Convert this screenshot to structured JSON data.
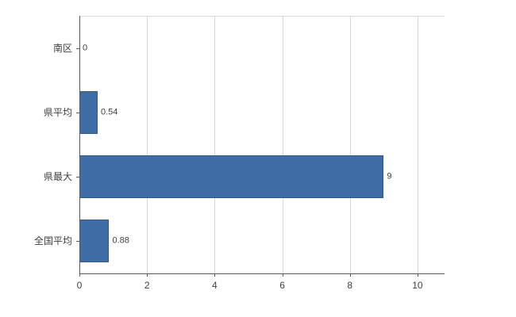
{
  "chart_data": {
    "type": "bar",
    "orientation": "horizontal",
    "title": "",
    "xlabel": "",
    "ylabel": "",
    "categories": [
      "南区",
      "県平均",
      "県最大",
      "全国平均"
    ],
    "values": [
      0,
      0.54,
      9,
      0.88
    ],
    "data_labels": [
      "0",
      "0.54",
      "9",
      "0.88"
    ],
    "xlim": [
      0,
      10.8
    ],
    "x_ticks": [
      0,
      2,
      4,
      6,
      8,
      10
    ],
    "x_tick_labels": [
      "0",
      "2",
      "4",
      "6",
      "8",
      "10"
    ],
    "grid": true,
    "legend": false,
    "colors": {
      "bar_fill": "#3e6da6",
      "bar_border": "#30588c",
      "gridline": "#d9d9d9",
      "axis": "#595959",
      "text": "#404040",
      "background": "#ffffff"
    }
  }
}
